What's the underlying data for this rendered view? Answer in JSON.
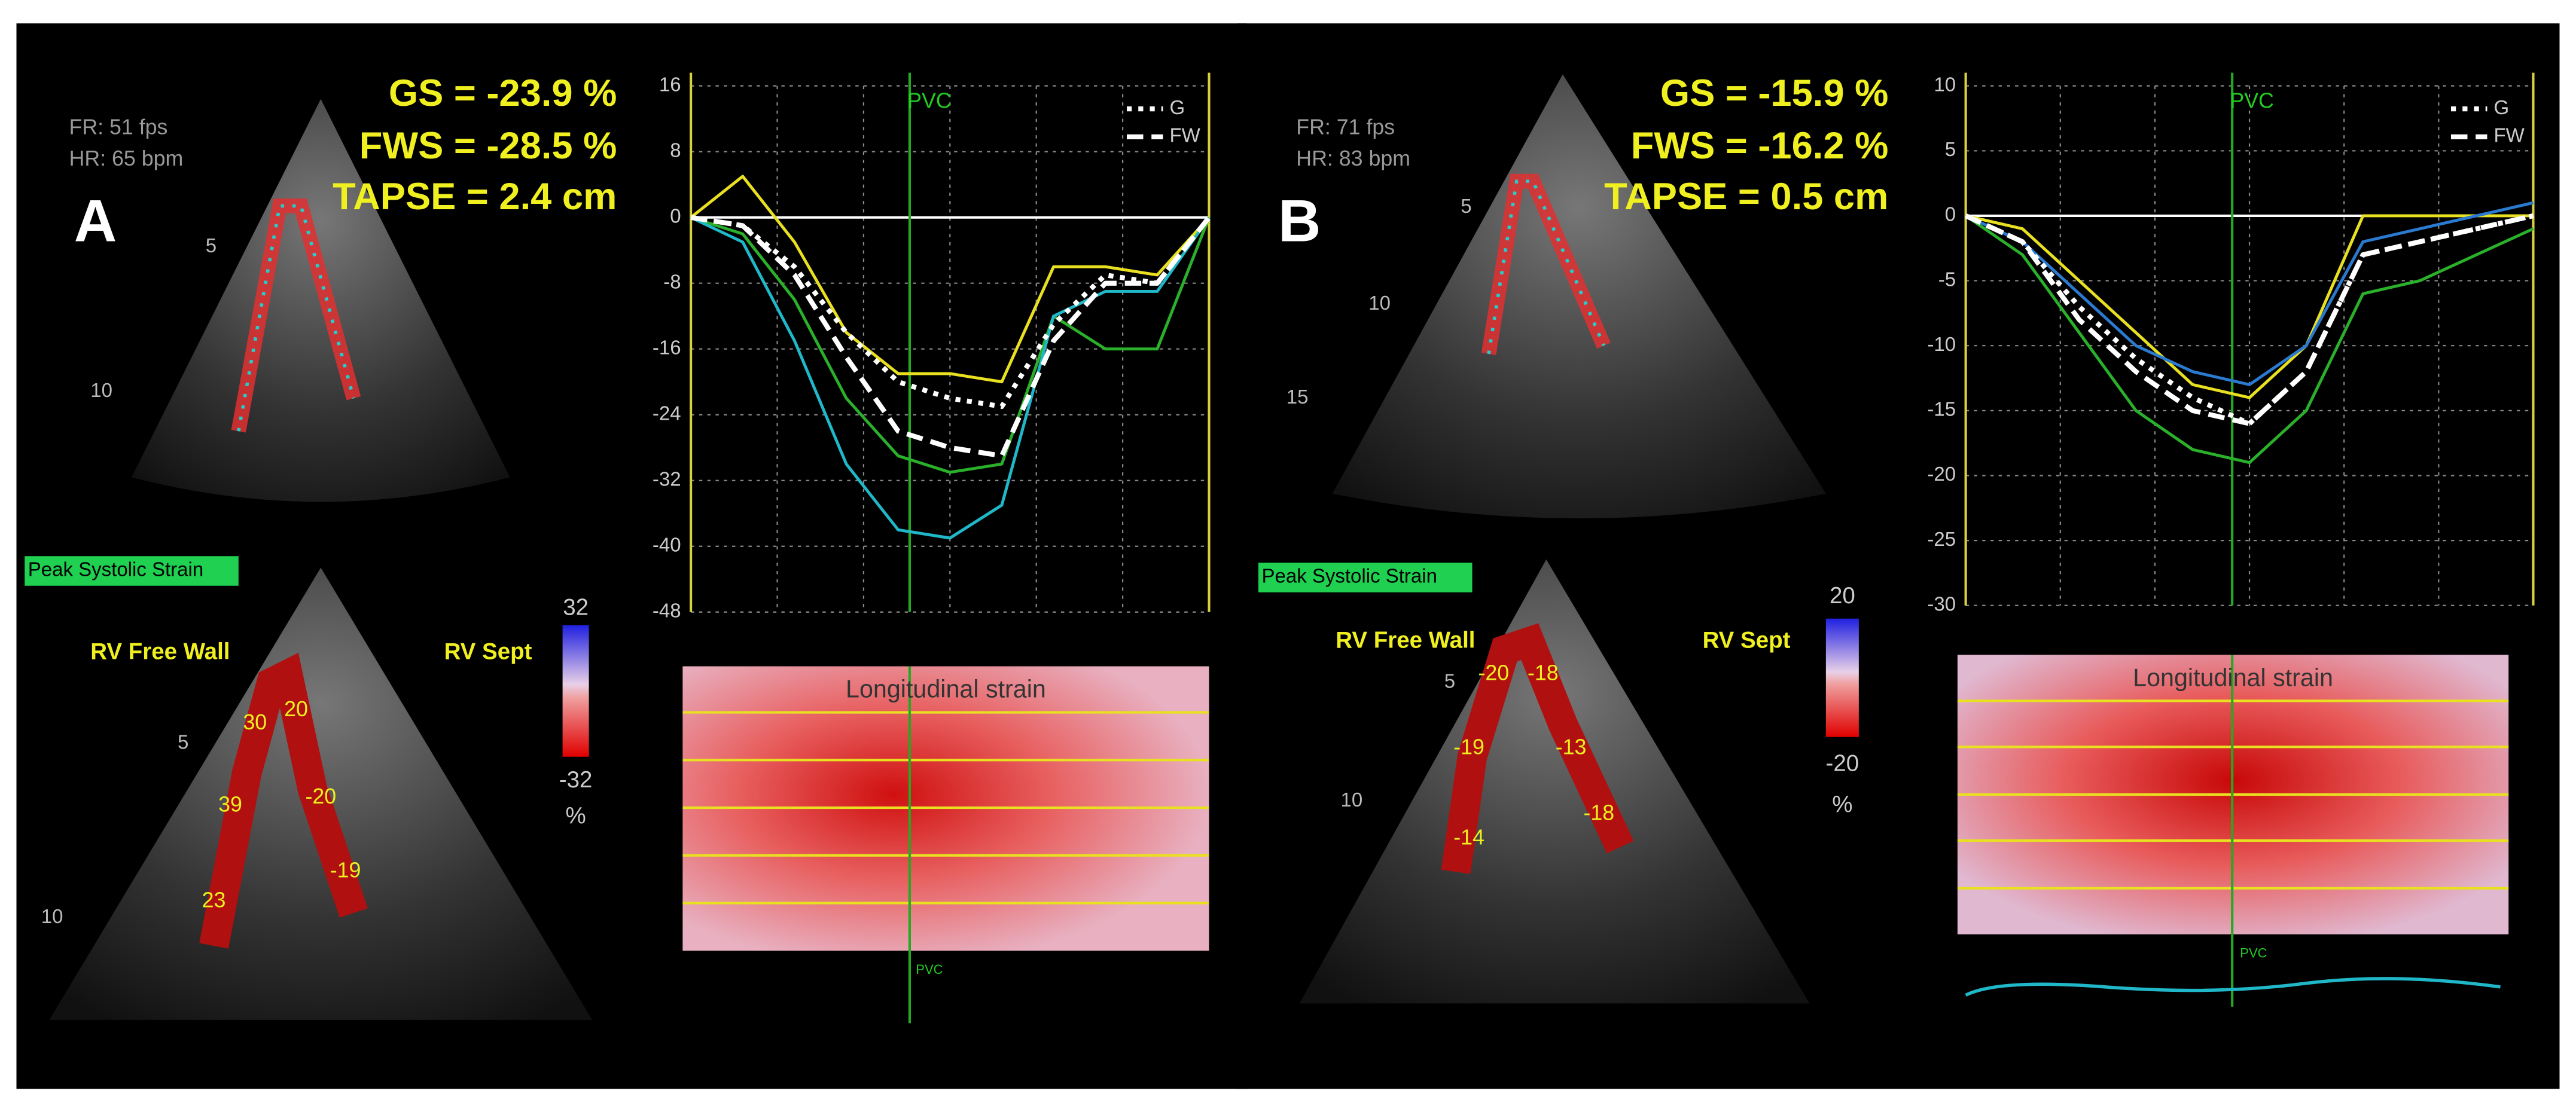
{
  "panels": [
    {
      "label": "A",
      "fr": "FR: 51 fps",
      "hr": "HR: 65 bpm",
      "gs": "GS = -23.9 %",
      "fws": "FWS = -28.5 %",
      "tapse": "TAPSE = 2.4 cm",
      "peak_label": "Peak Systolic Strain",
      "free_wall_label": "RV Free Wall",
      "septum_label": "RV Sept",
      "colorbar": {
        "max": "32",
        "min": "-32",
        "unit": "%"
      },
      "segments": [
        "30",
        "39",
        "23",
        "20",
        "-20",
        "-19"
      ],
      "depth_labels": [
        "5",
        "10",
        "5",
        "10"
      ],
      "map_title": "Longitudinal strain",
      "map_marker": "PVC"
    },
    {
      "label": "B",
      "fr": "FR: 71 fps",
      "hr": "HR: 83 bpm",
      "gs": "GS = -15.9 %",
      "fws": "FWS = -16.2 %",
      "tapse": "TAPSE = 0.5 cm",
      "peak_label": "Peak Systolic Strain",
      "free_wall_label": "RV Free Wall",
      "septum_label": "RV Sept",
      "colorbar": {
        "max": "20",
        "min": "-20",
        "unit": "%"
      },
      "segments": [
        "-20",
        "-19",
        "-14",
        "-18",
        "-13",
        "-18"
      ],
      "depth_labels": [
        "5",
        "10",
        "15",
        "5",
        "10"
      ],
      "map_title": "Longitudinal strain",
      "map_marker": "PVC"
    }
  ],
  "chart_data": [
    {
      "type": "line",
      "annotation": "PVC",
      "grid": true,
      "legend_corner": "top-right",
      "ylim": [
        -48,
        16
      ],
      "yticks": [
        16,
        8,
        0,
        -8,
        -16,
        -24,
        -32,
        -40,
        -48
      ],
      "categories": [
        null,
        null,
        null,
        null,
        null,
        null,
        null,
        null,
        null,
        null,
        null
      ],
      "series": [
        {
          "color": "#e8e020",
          "values": [
            0,
            5,
            -3,
            -14,
            -19,
            -19,
            -20,
            -6,
            -6,
            -7,
            0
          ]
        },
        {
          "color": "#2ab02a",
          "values": [
            0,
            -2,
            -10,
            -22,
            -29,
            -31,
            -30,
            -12,
            -16,
            -16,
            0
          ]
        },
        {
          "color": "#20b8c8",
          "values": [
            0,
            -3,
            -15,
            -30,
            -38,
            -39,
            -35,
            -12,
            -9,
            -9,
            0
          ]
        },
        {
          "name": "G",
          "color": "#ffffff",
          "dash": "3 4",
          "values": [
            0,
            -1,
            -6,
            -14,
            -20,
            -22,
            -23,
            -13,
            -7,
            -8,
            0
          ]
        },
        {
          "name": "FW",
          "color": "#ffffff",
          "dash": "10 5",
          "values": [
            0,
            -1,
            -7,
            -17,
            -26,
            -28,
            -29,
            -15,
            -8,
            -8,
            0
          ]
        }
      ]
    },
    {
      "type": "line",
      "annotation": "PVC",
      "grid": true,
      "legend_corner": "top-right",
      "ylim": [
        -30,
        10
      ],
      "yticks": [
        10,
        5,
        0,
        -5,
        -10,
        -15,
        -20,
        -25,
        -30
      ],
      "categories": [
        null,
        null,
        null,
        null,
        null,
        null,
        null,
        null,
        null,
        null,
        null
      ],
      "series": [
        {
          "color": "#e8e020",
          "values": [
            0,
            -1,
            -5,
            -9,
            -13,
            -14,
            -10,
            0,
            0,
            0,
            0
          ]
        },
        {
          "color": "#2ab02a",
          "values": [
            0,
            -3,
            -9,
            -15,
            -18,
            -19,
            -15,
            -6,
            -5,
            -3,
            -1
          ]
        },
        {
          "color": "#2a7ad0",
          "values": [
            0,
            -2,
            -6,
            -10,
            -12,
            -13,
            -10,
            -2,
            -1,
            0,
            1
          ]
        },
        {
          "name": "G",
          "color": "#ffffff",
          "dash": "3 4",
          "values": [
            0,
            -2,
            -7,
            -11,
            -14,
            -16,
            -12,
            -3,
            -2,
            -1,
            0
          ]
        },
        {
          "name": "FW",
          "color": "#ffffff",
          "dash": "10 5",
          "values": [
            0,
            -2,
            -8,
            -12,
            -15,
            -16,
            -12,
            -3,
            -2,
            -1,
            0
          ]
        }
      ]
    }
  ]
}
